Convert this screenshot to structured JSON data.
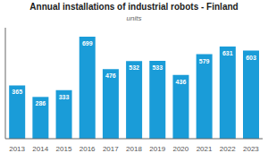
{
  "chart_data": {
    "type": "bar",
    "title": "Annual installations of industrial robots - Finland",
    "subtitle": "units",
    "categories": [
      "2013",
      "2014",
      "2015",
      "2016",
      "2017",
      "2018",
      "2019",
      "2020",
      "2021",
      "2022",
      "2023"
    ],
    "values": [
      365,
      286,
      333,
      699,
      476,
      532,
      533,
      436,
      579,
      631,
      603
    ],
    "color": "#1a9cd8",
    "ylim": [
      0,
      760
    ],
    "grid": false,
    "data_labels": true,
    "tick_labels": "x"
  }
}
